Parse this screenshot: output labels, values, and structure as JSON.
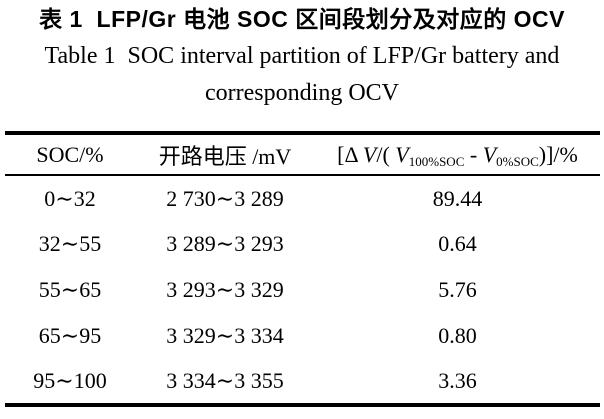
{
  "caption": {
    "zh": "表 1  LFP/Gr 电池 SOC 区间段划分及对应的 OCV",
    "en_line1": "Table 1  SOC interval partition of LFP/Gr battery and",
    "en_line2": "corresponding OCV"
  },
  "table": {
    "headers": {
      "soc": "SOC/%",
      "ocv": "开路电压 /mV",
      "dv_parts": {
        "open": "[Δ ",
        "v1": "V",
        "mid": "/( ",
        "v2": "V",
        "sub100": "100%SOC",
        "minus": " - ",
        "v3": "V",
        "sub0": "0%SOC",
        "close": ")]/%"
      }
    },
    "rows": [
      {
        "soc": "0∼32",
        "ocv": "2 730∼3 289",
        "dv": "89.44"
      },
      {
        "soc": "32∼55",
        "ocv": "3 289∼3 293",
        "dv": "0.64"
      },
      {
        "soc": "55∼65",
        "ocv": "3 293∼3 329",
        "dv": "5.76"
      },
      {
        "soc": "65∼95",
        "ocv": "3 329∼3 334",
        "dv": "0.80"
      },
      {
        "soc": "95∼100",
        "ocv": "3 334∼3 355",
        "dv": "3.36"
      }
    ]
  },
  "colors": {
    "text": "#000000",
    "background": "#ffffff",
    "rule": "#000000"
  }
}
